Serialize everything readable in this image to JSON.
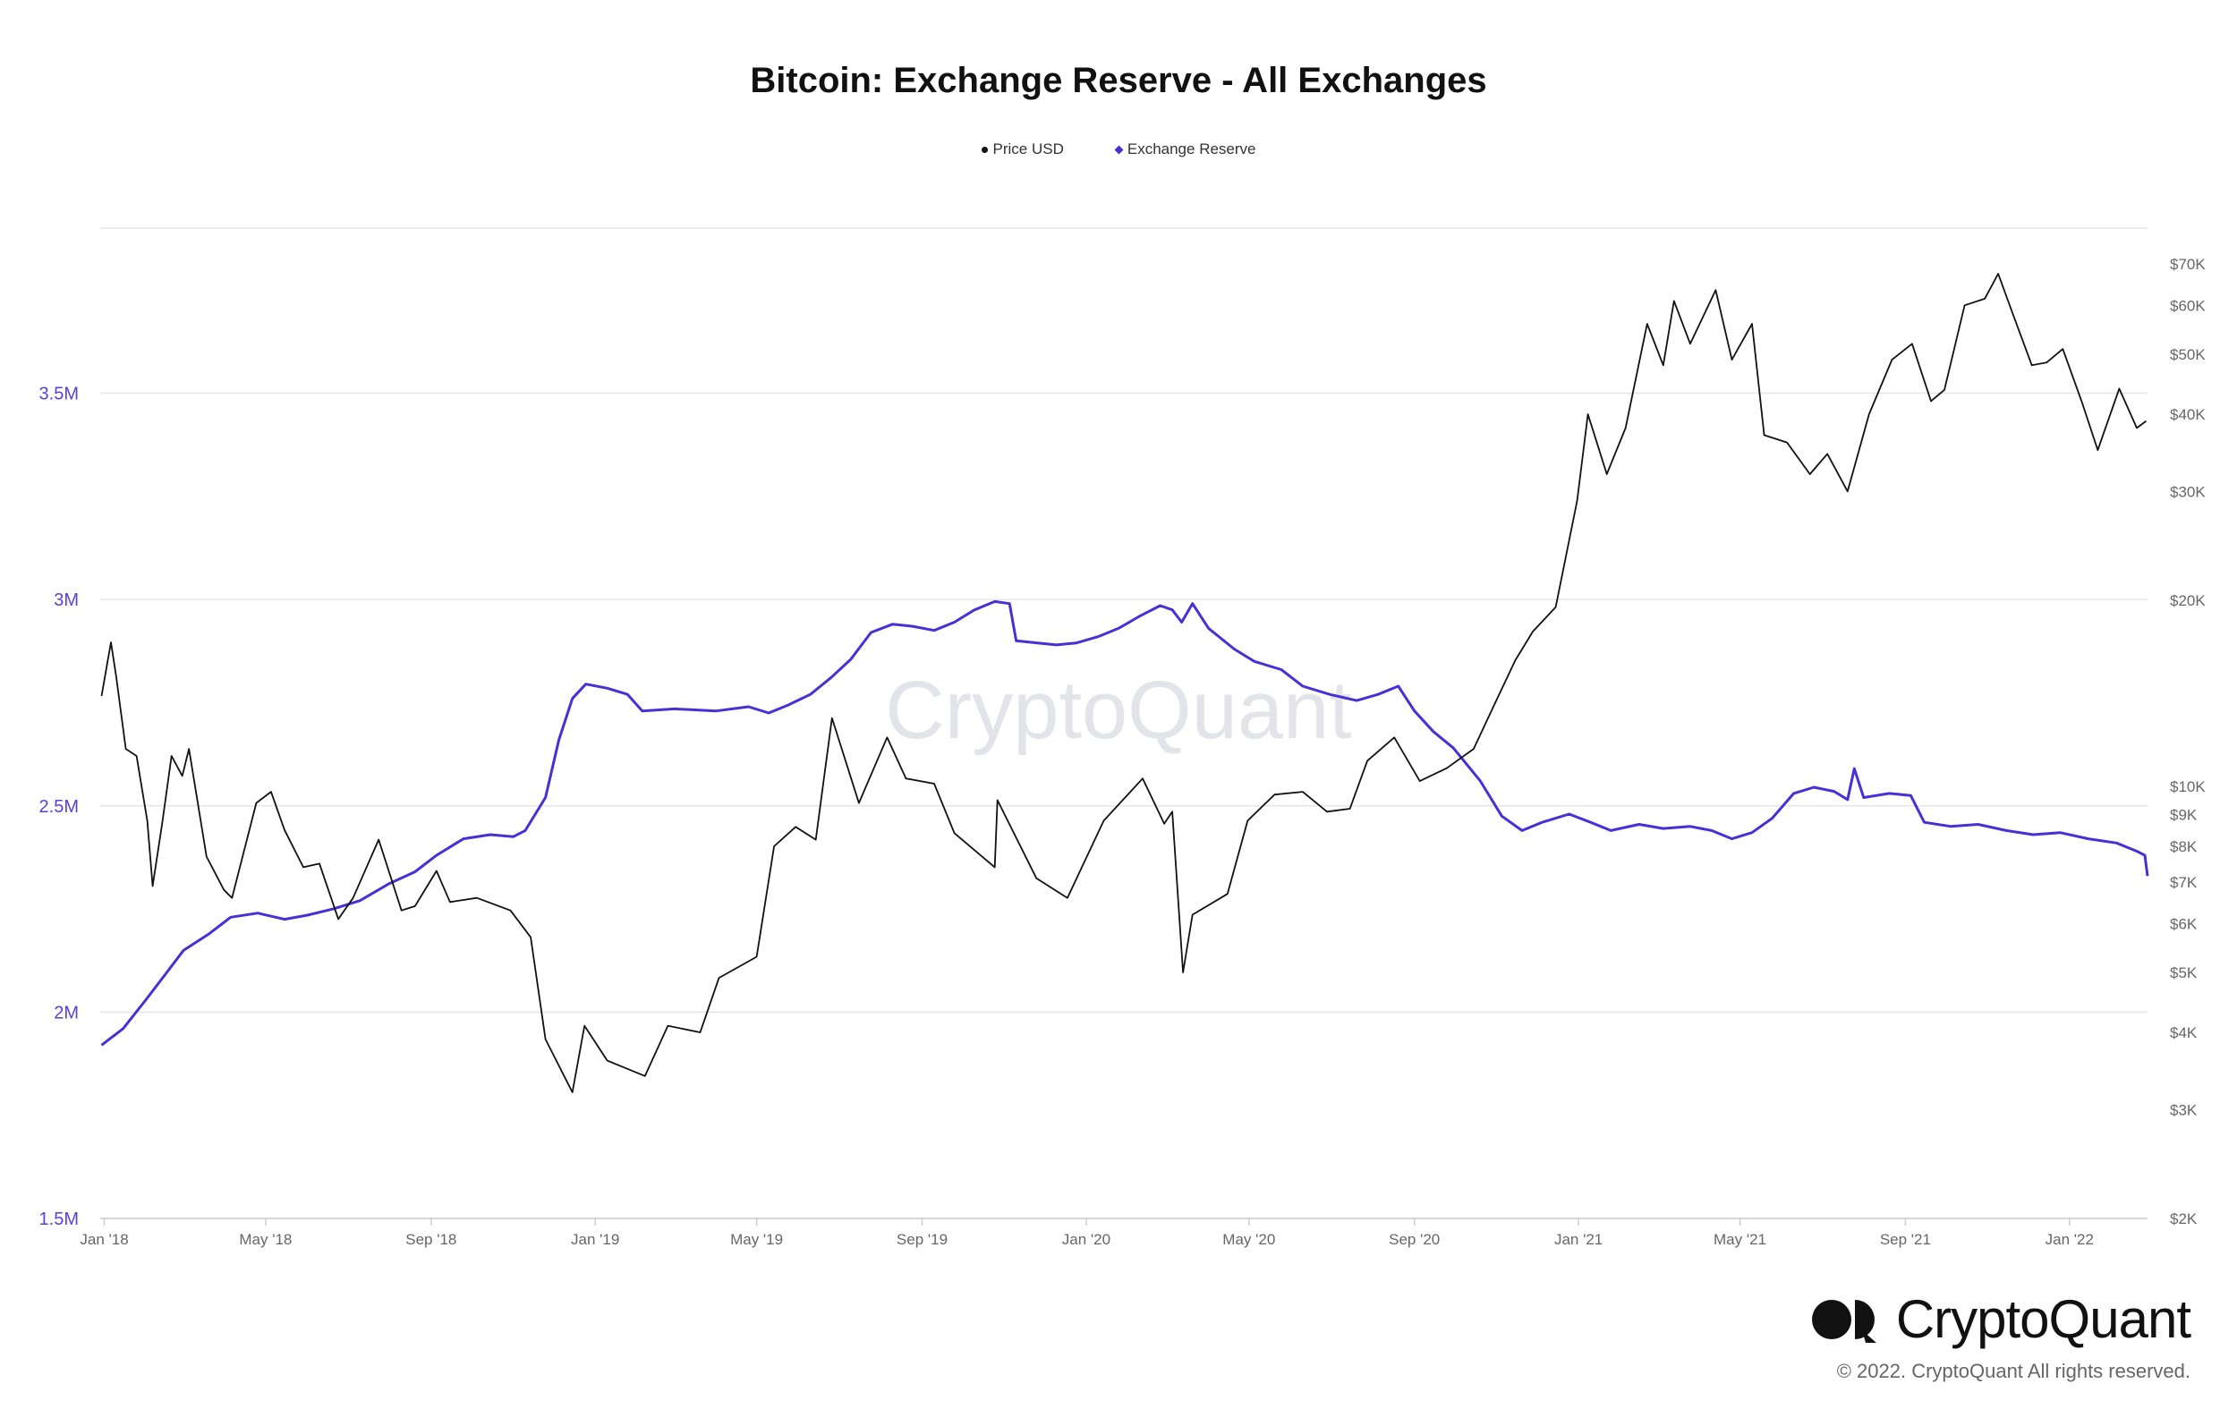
{
  "chart_data": {
    "type": "line",
    "title": "Bitcoin: Exchange Reserve - All Exchanges",
    "legend": {
      "placement": "top-center",
      "entries": [
        "Price USD",
        "Exchange Reserve"
      ]
    },
    "x_ticks": [
      "Jan '18",
      "May '18",
      "Sep '18",
      "Jan '19",
      "May '19",
      "Sep '19",
      "Jan '20",
      "May '20",
      "Sep '20",
      "Jan '21",
      "May '21",
      "Sep '21",
      "Jan '22"
    ],
    "x_range": [
      "2017-12-29",
      "2022-02-28"
    ],
    "y_left": {
      "series": "Exchange Reserve",
      "ticks": [
        "1.5M",
        "2M",
        "2.5M",
        "3M",
        "3.5M"
      ],
      "range": [
        1500000,
        3900000
      ]
    },
    "y_right": {
      "series": "Price USD",
      "scale": "log",
      "ticks": [
        "$2K",
        "$3K",
        "$4K",
        "$5K",
        "$6K",
        "$7K",
        "$8K",
        "$9K",
        "$10K",
        "$20K",
        "$30K",
        "$40K",
        "$50K",
        "$60K",
        "$70K"
      ],
      "range": [
        2000,
        80000
      ]
    },
    "grid": true,
    "colors": {
      "reserve": "#4a2fd6",
      "price": "#111111",
      "axis_text": "#666666",
      "grid": "#e6e6e6",
      "left_axis_text": "#5a3fd9"
    },
    "series": [
      {
        "name": "Exchange Reserve",
        "axis": "left",
        "points": [
          [
            "2017-12-30",
            1920000
          ],
          [
            "2018-01-15",
            1960000
          ],
          [
            "2018-02-01",
            2030000
          ],
          [
            "2018-02-15",
            2090000
          ],
          [
            "2018-03-01",
            2150000
          ],
          [
            "2018-03-20",
            2190000
          ],
          [
            "2018-04-05",
            2230000
          ],
          [
            "2018-04-25",
            2240000
          ],
          [
            "2018-05-15",
            2225000
          ],
          [
            "2018-06-01",
            2235000
          ],
          [
            "2018-06-20",
            2250000
          ],
          [
            "2018-07-10",
            2270000
          ],
          [
            "2018-07-31",
            2310000
          ],
          [
            "2018-08-20",
            2340000
          ],
          [
            "2018-09-05",
            2380000
          ],
          [
            "2018-09-25",
            2420000
          ],
          [
            "2018-10-15",
            2430000
          ],
          [
            "2018-11-01",
            2425000
          ],
          [
            "2018-11-10",
            2440000
          ],
          [
            "2018-11-25",
            2520000
          ],
          [
            "2018-12-05",
            2660000
          ],
          [
            "2018-12-15",
            2760000
          ],
          [
            "2018-12-25",
            2795000
          ],
          [
            "2019-01-10",
            2785000
          ],
          [
            "2019-01-25",
            2770000
          ],
          [
            "2019-02-05",
            2730000
          ],
          [
            "2019-03-01",
            2735000
          ],
          [
            "2019-04-01",
            2730000
          ],
          [
            "2019-04-25",
            2740000
          ],
          [
            "2019-05-10",
            2725000
          ],
          [
            "2019-05-25",
            2745000
          ],
          [
            "2019-06-10",
            2770000
          ],
          [
            "2019-06-25",
            2810000
          ],
          [
            "2019-07-10",
            2855000
          ],
          [
            "2019-07-25",
            2920000
          ],
          [
            "2019-08-10",
            2940000
          ],
          [
            "2019-08-25",
            2935000
          ],
          [
            "2019-09-10",
            2925000
          ],
          [
            "2019-09-25",
            2945000
          ],
          [
            "2019-10-10",
            2975000
          ],
          [
            "2019-10-25",
            2995000
          ],
          [
            "2019-11-05",
            2990000
          ],
          [
            "2019-11-10",
            2900000
          ],
          [
            "2019-11-25",
            2895000
          ],
          [
            "2019-12-10",
            2890000
          ],
          [
            "2019-12-25",
            2895000
          ],
          [
            "2020-01-10",
            2910000
          ],
          [
            "2020-01-25",
            2930000
          ],
          [
            "2020-02-10",
            2960000
          ],
          [
            "2020-02-25",
            2985000
          ],
          [
            "2020-03-05",
            2975000
          ],
          [
            "2020-03-12",
            2945000
          ],
          [
            "2020-03-20",
            2990000
          ],
          [
            "2020-04-01",
            2930000
          ],
          [
            "2020-04-20",
            2880000
          ],
          [
            "2020-05-05",
            2850000
          ],
          [
            "2020-05-25",
            2830000
          ],
          [
            "2020-06-10",
            2790000
          ],
          [
            "2020-06-30",
            2770000
          ],
          [
            "2020-07-20",
            2755000
          ],
          [
            "2020-08-05",
            2770000
          ],
          [
            "2020-08-20",
            2790000
          ],
          [
            "2020-09-01",
            2730000
          ],
          [
            "2020-09-15",
            2680000
          ],
          [
            "2020-09-30",
            2640000
          ],
          [
            "2020-10-20",
            2560000
          ],
          [
            "2020-11-05",
            2475000
          ],
          [
            "2020-11-20",
            2440000
          ],
          [
            "2020-12-05",
            2460000
          ],
          [
            "2020-12-25",
            2480000
          ],
          [
            "2021-01-10",
            2460000
          ],
          [
            "2021-01-25",
            2440000
          ],
          [
            "2021-02-15",
            2455000
          ],
          [
            "2021-03-05",
            2445000
          ],
          [
            "2021-03-25",
            2450000
          ],
          [
            "2021-04-10",
            2440000
          ],
          [
            "2021-04-25",
            2420000
          ],
          [
            "2021-05-10",
            2435000
          ],
          [
            "2021-05-25",
            2470000
          ],
          [
            "2021-06-10",
            2530000
          ],
          [
            "2021-06-25",
            2545000
          ],
          [
            "2021-07-10",
            2535000
          ],
          [
            "2021-07-20",
            2515000
          ],
          [
            "2021-07-25",
            2590000
          ],
          [
            "2021-08-01",
            2520000
          ],
          [
            "2021-08-20",
            2530000
          ],
          [
            "2021-09-05",
            2525000
          ],
          [
            "2021-09-15",
            2460000
          ],
          [
            "2021-10-05",
            2450000
          ],
          [
            "2021-10-25",
            2455000
          ],
          [
            "2021-11-15",
            2440000
          ],
          [
            "2021-12-05",
            2430000
          ],
          [
            "2021-12-25",
            2435000
          ],
          [
            "2022-01-15",
            2420000
          ],
          [
            "2022-02-05",
            2410000
          ],
          [
            "2022-02-20",
            2390000
          ],
          [
            "2022-02-26",
            2380000
          ],
          [
            "2022-02-28",
            2330000
          ]
        ]
      },
      {
        "name": "Price USD",
        "axis": "right",
        "points": [
          [
            "2017-12-30",
            14000
          ],
          [
            "2018-01-06",
            17100
          ],
          [
            "2018-01-10",
            15000
          ],
          [
            "2018-01-17",
            11500
          ],
          [
            "2018-01-25",
            11200
          ],
          [
            "2018-02-02",
            8800
          ],
          [
            "2018-02-06",
            6900
          ],
          [
            "2018-02-13",
            8700
          ],
          [
            "2018-02-20",
            11200
          ],
          [
            "2018-02-28",
            10400
          ],
          [
            "2018-03-05",
            11500
          ],
          [
            "2018-03-18",
            7700
          ],
          [
            "2018-03-31",
            6800
          ],
          [
            "2018-04-06",
            6600
          ],
          [
            "2018-04-24",
            9400
          ],
          [
            "2018-05-05",
            9800
          ],
          [
            "2018-05-15",
            8500
          ],
          [
            "2018-05-29",
            7400
          ],
          [
            "2018-06-10",
            7500
          ],
          [
            "2018-06-24",
            6100
          ],
          [
            "2018-07-05",
            6600
          ],
          [
            "2018-07-24",
            8200
          ],
          [
            "2018-08-10",
            6300
          ],
          [
            "2018-08-20",
            6400
          ],
          [
            "2018-09-05",
            7300
          ],
          [
            "2018-09-15",
            6500
          ],
          [
            "2018-10-05",
            6600
          ],
          [
            "2018-10-30",
            6300
          ],
          [
            "2018-11-14",
            5700
          ],
          [
            "2018-11-25",
            3900
          ],
          [
            "2018-12-15",
            3200
          ],
          [
            "2018-12-24",
            4100
          ],
          [
            "2019-01-10",
            3600
          ],
          [
            "2019-02-07",
            3400
          ],
          [
            "2019-02-24",
            4100
          ],
          [
            "2019-03-20",
            4000
          ],
          [
            "2019-04-03",
            4900
          ],
          [
            "2019-05-01",
            5300
          ],
          [
            "2019-05-14",
            8000
          ],
          [
            "2019-05-30",
            8600
          ],
          [
            "2019-06-14",
            8200
          ],
          [
            "2019-06-26",
            12900
          ],
          [
            "2019-07-16",
            9400
          ],
          [
            "2019-08-06",
            12000
          ],
          [
            "2019-08-20",
            10300
          ],
          [
            "2019-09-10",
            10100
          ],
          [
            "2019-09-25",
            8400
          ],
          [
            "2019-10-25",
            7400
          ],
          [
            "2019-10-27",
            9500
          ],
          [
            "2019-11-25",
            7100
          ],
          [
            "2019-12-18",
            6600
          ],
          [
            "2020-01-14",
            8800
          ],
          [
            "2020-02-12",
            10300
          ],
          [
            "2020-02-28",
            8700
          ],
          [
            "2020-03-05",
            9100
          ],
          [
            "2020-03-13",
            5000
          ],
          [
            "2020-03-20",
            6200
          ],
          [
            "2020-04-15",
            6700
          ],
          [
            "2020-04-30",
            8800
          ],
          [
            "2020-05-20",
            9700
          ],
          [
            "2020-06-10",
            9800
          ],
          [
            "2020-06-28",
            9100
          ],
          [
            "2020-07-15",
            9200
          ],
          [
            "2020-07-28",
            11000
          ],
          [
            "2020-08-17",
            12000
          ],
          [
            "2020-09-05",
            10200
          ],
          [
            "2020-09-25",
            10700
          ],
          [
            "2020-10-15",
            11500
          ],
          [
            "2020-10-30",
            13500
          ],
          [
            "2020-11-15",
            16000
          ],
          [
            "2020-11-28",
            17800
          ],
          [
            "2020-12-15",
            19500
          ],
          [
            "2020-12-31",
            29000
          ],
          [
            "2021-01-08",
            40000
          ],
          [
            "2021-01-22",
            32000
          ],
          [
            "2021-02-05",
            38000
          ],
          [
            "2021-02-21",
            56000
          ],
          [
            "2021-03-05",
            48000
          ],
          [
            "2021-03-13",
            61000
          ],
          [
            "2021-03-25",
            52000
          ],
          [
            "2021-04-13",
            63500
          ],
          [
            "2021-04-25",
            49000
          ],
          [
            "2021-05-10",
            56000
          ],
          [
            "2021-05-19",
            37000
          ],
          [
            "2021-06-05",
            36000
          ],
          [
            "2021-06-22",
            32000
          ],
          [
            "2021-07-05",
            34500
          ],
          [
            "2021-07-20",
            30000
          ],
          [
            "2021-08-05",
            40000
          ],
          [
            "2021-08-22",
            49000
          ],
          [
            "2021-09-06",
            52000
          ],
          [
            "2021-09-20",
            42000
          ],
          [
            "2021-09-30",
            43800
          ],
          [
            "2021-10-15",
            60000
          ],
          [
            "2021-10-30",
            61500
          ],
          [
            "2021-11-09",
            67500
          ],
          [
            "2021-11-20",
            58000
          ],
          [
            "2021-12-04",
            48000
          ],
          [
            "2021-12-15",
            48500
          ],
          [
            "2021-12-27",
            51000
          ],
          [
            "2022-01-10",
            42000
          ],
          [
            "2022-01-22",
            35000
          ],
          [
            "2022-02-07",
            44000
          ],
          [
            "2022-02-20",
            38000
          ],
          [
            "2022-02-27",
            39000
          ]
        ]
      }
    ]
  },
  "watermark": "CryptoQuant",
  "brand": {
    "name": "CryptoQuant",
    "copyright": "© 2022. CryptoQuant All rights reserved."
  }
}
